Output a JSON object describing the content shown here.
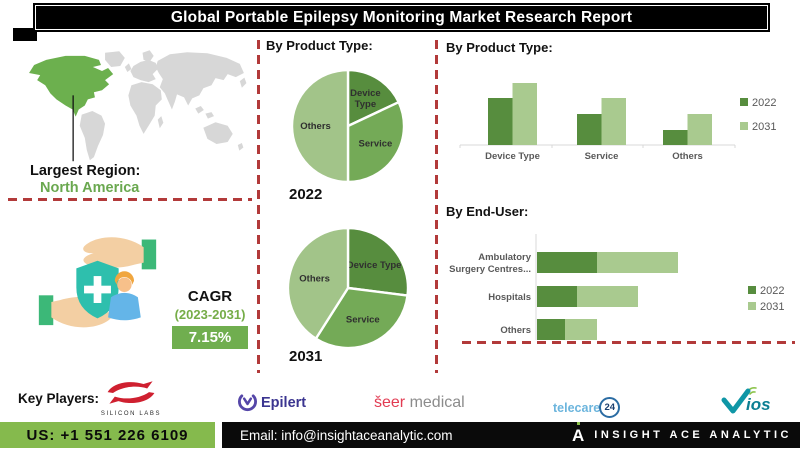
{
  "title": "Global Portable Epilepsy Monitoring Market Research Report",
  "colors": {
    "dark_green": "#578d3e",
    "mid_green": "#74aa57",
    "light_green": "#a2c489",
    "bar_light_green": "#a9ca8f",
    "map_green": "#6cb04e",
    "map_gray": "#d7d7d7",
    "dashed_red": "#b23a3a",
    "contact_green": "#85ba4d",
    "cagr_box_green": "#70ae4f",
    "label_gray": "#595959"
  },
  "largest_region": {
    "label": "Largest Region:",
    "value": "North America"
  },
  "cagr": {
    "label": "CAGR",
    "period": "(2023-2031)",
    "value": "7.15%"
  },
  "chart_data": [
    {
      "type": "pie",
      "title": "By Product Type:",
      "year": "2022",
      "labels": [
        "Device Type",
        "Service",
        "Others"
      ],
      "label_lines": [
        [
          "Device",
          "Type"
        ],
        [
          "Service"
        ],
        [
          "Others"
        ]
      ],
      "values": [
        18,
        32,
        50
      ],
      "units": "percent-share (estimated from slice angles)",
      "colors": [
        "#578d3e",
        "#74aa57",
        "#a2c489"
      ]
    },
    {
      "type": "pie",
      "title": "By Product Type:",
      "year": "2031",
      "labels": [
        "Device Type",
        "Service",
        "Others"
      ],
      "label_lines": [
        [
          "Device Type"
        ],
        [
          "Service"
        ],
        [
          "Others"
        ]
      ],
      "values": [
        27,
        32,
        41
      ],
      "units": "percent-share (estimated from slice angles)",
      "colors": [
        "#578d3e",
        "#74aa57",
        "#a2c489"
      ]
    },
    {
      "type": "bar",
      "title": "By Product Type:",
      "categories": [
        "Device Type",
        "Service",
        "Others"
      ],
      "series": [
        {
          "name": "2022",
          "values": [
            47,
            31,
            15
          ],
          "color": "#578d3e"
        },
        {
          "name": "2031",
          "values": [
            62,
            47,
            31
          ],
          "color": "#a9ca8f"
        }
      ],
      "ylim": [
        0,
        70
      ],
      "units": "relative (no axis values shown)",
      "legend": [
        "2022",
        "2031"
      ],
      "legend_position": "right",
      "grid": false
    },
    {
      "type": "stacked-hbar",
      "title": "By End-User:",
      "categories": [
        "Ambulatory Surgery Centres...",
        "Hospitals",
        "Others"
      ],
      "label_lines": [
        [
          "Ambulatory",
          "Surgery Centres..."
        ],
        [
          "Hospitals"
        ],
        [
          "Others"
        ]
      ],
      "series": [
        {
          "name": "2022",
          "values": [
            60,
            40,
            28
          ],
          "color": "#578d3e"
        },
        {
          "name": "2031",
          "values": [
            81,
            61,
            32
          ],
          "color": "#a9ca8f"
        }
      ],
      "xlim": [
        0,
        150
      ],
      "units": "relative (no axis values shown)",
      "legend": [
        "2022",
        "2031"
      ],
      "legend_position": "right",
      "grid": false
    }
  ],
  "key_players": {
    "label": "Key Players:",
    "players": [
      {
        "name": "Silicon Labs",
        "logo_text": "SILICON LABS"
      },
      {
        "name": "Epilert",
        "logo_text": "Epilert"
      },
      {
        "name": "Seer Medical",
        "logo_text_primary": "šeer",
        "logo_text_secondary": "medical"
      },
      {
        "name": "Telecare24",
        "logo_text": "telecare",
        "badge": "24"
      },
      {
        "name": "Vios",
        "logo_text": "ios"
      }
    ]
  },
  "contact": {
    "phone": "US: +1 551 226 6109",
    "email": "Email: info@insightaceanalytic.com",
    "brand": "INSIGHT ACE ANALYTIC",
    "brand_initial": "A"
  }
}
